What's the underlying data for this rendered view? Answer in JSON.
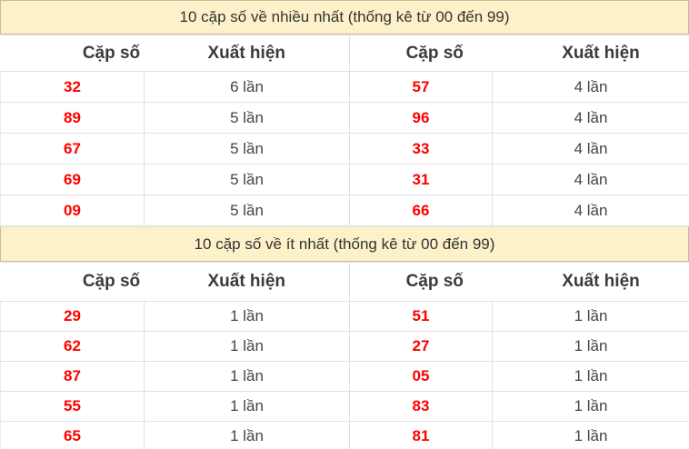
{
  "colors": {
    "accent_red": "#ff0000",
    "title_bar_bg": "#fdf1c9",
    "title_bar_border": "#c8ba9e",
    "table_border": "#e0e0e0",
    "title_text": "#333333",
    "header_text": "#3b3b3b",
    "body_text": "#444444"
  },
  "sections": [
    {
      "title": "10 cặp số về nhiều nhất (thống kê từ 00 đến 99)",
      "columns": [
        "Cặp số",
        "Xuất hiện",
        "Cặp số",
        "Xuất hiện"
      ],
      "rows": [
        [
          "32",
          "6 lần",
          "57",
          "4 lần"
        ],
        [
          "89",
          "5 lần",
          "96",
          "4 lần"
        ],
        [
          "67",
          "5 lần",
          "33",
          "4 lần"
        ],
        [
          "69",
          "5 lần",
          "31",
          "4 lần"
        ],
        [
          "09",
          "5 lần",
          "66",
          "4 lần"
        ]
      ]
    },
    {
      "title": "10 cặp số về ít nhất (thống kê từ 00 đến 99)",
      "columns": [
        "Cặp số",
        "Xuất hiện",
        "Cặp số",
        "Xuất hiện"
      ],
      "rows": [
        [
          "29",
          "1 lần",
          "51",
          "1 lần"
        ],
        [
          "62",
          "1 lần",
          "27",
          "1 lần"
        ],
        [
          "87",
          "1 lần",
          "05",
          "1 lần"
        ],
        [
          "55",
          "1 lần",
          "83",
          "1 lần"
        ],
        [
          "65",
          "1 lần",
          "81",
          "1 lần"
        ]
      ]
    }
  ]
}
